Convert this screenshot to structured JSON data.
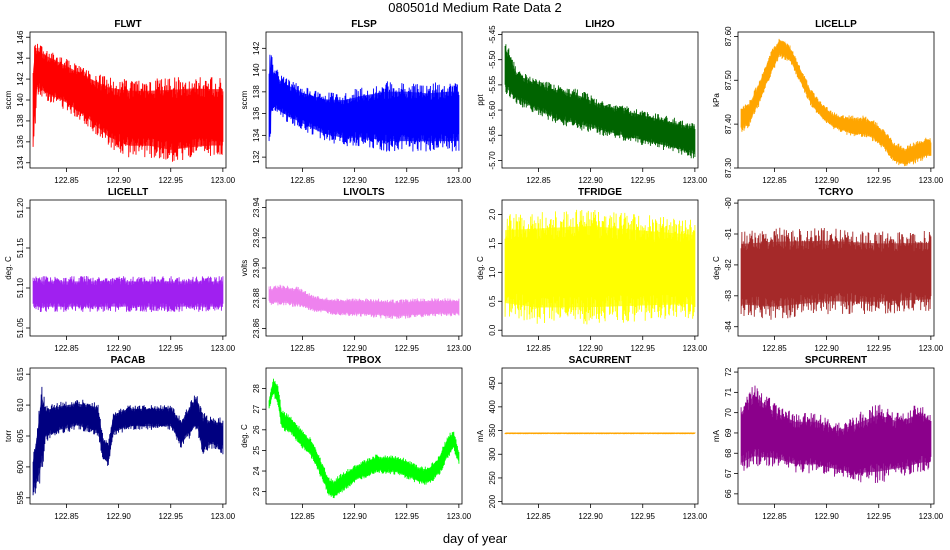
{
  "title": "080501d   Medium Rate Data 2",
  "xlabel": "day of year",
  "chart_data": [
    {
      "type": "line",
      "title": "FLWT",
      "ylabel": "sccm",
      "color": "#ff0000",
      "xlim": [
        122.815,
        123.003
      ],
      "xticks": [
        "122.85",
        "122.90",
        "122.95",
        "123.00"
      ],
      "ylim": [
        133.5,
        146.5
      ],
      "yticks": [
        "134",
        "136",
        "138",
        "140",
        "142",
        "144",
        "146"
      ],
      "series": [
        {
          "x": [
            122.818,
            122.82,
            122.822,
            122.83,
            122.85,
            122.87,
            122.89,
            122.91,
            122.93,
            122.95,
            122.97,
            122.99,
            123.0
          ],
          "upper": [
            144.5,
            145.8,
            145.5,
            145.0,
            144.0,
            143.0,
            142.2,
            142.0,
            142.0,
            142.2,
            142.3,
            142.2,
            142.2
          ],
          "lower": [
            134.0,
            137.5,
            140.5,
            140.0,
            139.0,
            137.5,
            135.5,
            134.5,
            134.5,
            134.0,
            134.3,
            134.5,
            134.5
          ]
        }
      ]
    },
    {
      "type": "line",
      "title": "FLSP",
      "ylabel": "sccm",
      "color": "#0000ff",
      "xlim": [
        122.815,
        123.003
      ],
      "xticks": [
        "122.85",
        "122.90",
        "122.95",
        "123.00"
      ],
      "ylim": [
        131.0,
        143.5
      ],
      "yticks": [
        "132",
        "134",
        "136",
        "138",
        "140",
        "142"
      ],
      "series": [
        {
          "x": [
            122.818,
            122.82,
            122.822,
            122.83,
            122.85,
            122.87,
            122.89,
            122.91,
            122.93,
            122.95,
            122.97,
            122.99,
            123.0
          ],
          "upper": [
            141.0,
            142.5,
            140.5,
            139.5,
            138.5,
            138.0,
            138.0,
            138.5,
            139.0,
            139.0,
            138.8,
            139.0,
            139.0
          ],
          "lower": [
            132.0,
            135.0,
            136.0,
            135.5,
            134.5,
            133.5,
            133.0,
            133.0,
            132.5,
            132.5,
            132.5,
            132.5,
            132.5
          ]
        }
      ]
    },
    {
      "type": "line",
      "title": "LIH2O",
      "ylabel": "ppt",
      "color": "#006400",
      "xlim": [
        122.815,
        123.003
      ],
      "xticks": [
        "122.85",
        "122.90",
        "122.95",
        "123.00"
      ],
      "ylim": [
        -5.715,
        -5.445
      ],
      "yticks": [
        "-5.45",
        "-5.50",
        "-5.55",
        "-5.60",
        "-5.65",
        "-5.70"
      ],
      "series": [
        {
          "x": [
            122.818,
            122.83,
            122.85,
            122.87,
            122.89,
            122.91,
            122.93,
            122.95,
            122.97,
            122.99,
            123.0
          ],
          "upper": [
            -5.46,
            -5.52,
            -5.54,
            -5.55,
            -5.56,
            -5.58,
            -5.59,
            -5.6,
            -5.61,
            -5.62,
            -5.62
          ],
          "lower": [
            -5.57,
            -5.59,
            -5.61,
            -5.63,
            -5.64,
            -5.65,
            -5.66,
            -5.67,
            -5.68,
            -5.69,
            -5.7
          ]
        }
      ]
    },
    {
      "type": "line",
      "title": "LICELLP",
      "ylabel": "kPa",
      "color": "#ffa500",
      "xlim": [
        122.815,
        123.003
      ],
      "xticks": [
        "122.85",
        "122.90",
        "122.95",
        "123.00"
      ],
      "ylim": [
        87.3,
        87.61
      ],
      "yticks": [
        "87.30",
        "87.40",
        "87.50",
        "87.60"
      ],
      "series": [
        {
          "x": [
            122.818,
            122.825,
            122.835,
            122.845,
            122.855,
            122.865,
            122.875,
            122.885,
            122.895,
            122.905,
            122.915,
            122.925,
            122.935,
            122.945,
            122.955,
            122.965,
            122.975,
            122.985,
            122.995,
            123.0
          ],
          "upper": [
            87.44,
            87.45,
            87.5,
            87.56,
            87.6,
            87.58,
            87.53,
            87.48,
            87.45,
            87.43,
            87.42,
            87.42,
            87.42,
            87.41,
            87.39,
            87.36,
            87.35,
            87.36,
            87.37,
            87.37
          ],
          "lower": [
            87.38,
            87.39,
            87.44,
            87.5,
            87.55,
            87.54,
            87.49,
            87.44,
            87.41,
            87.39,
            87.38,
            87.37,
            87.37,
            87.36,
            87.34,
            87.31,
            87.3,
            87.31,
            87.32,
            87.32
          ]
        }
      ]
    },
    {
      "type": "line",
      "title": "LICELLT",
      "ylabel": "deg. C",
      "color": "#a020f0",
      "xlim": [
        122.815,
        123.003
      ],
      "xticks": [
        "122.85",
        "122.90",
        "122.95",
        "123.00"
      ],
      "ylim": [
        51.04,
        51.21
      ],
      "yticks": [
        "51.05",
        "51.10",
        "51.15",
        "51.20"
      ],
      "series": [
        {
          "x": [
            122.818,
            123.0
          ],
          "upper": [
            51.115,
            51.115
          ],
          "lower": [
            51.07,
            51.07
          ]
        }
      ]
    },
    {
      "type": "line",
      "title": "LIVOLTS",
      "ylabel": "volts",
      "color": "#ee82ee",
      "xlim": [
        122.815,
        123.003
      ],
      "xticks": [
        "122.85",
        "122.90",
        "122.95",
        "123.00"
      ],
      "ylim": [
        23.855,
        23.945
      ],
      "yticks": [
        "23.86",
        "23.88",
        "23.90",
        "23.92",
        "23.94"
      ],
      "series": [
        {
          "x": [
            122.818,
            122.83,
            122.845,
            122.86,
            122.88,
            122.9,
            122.92,
            122.94,
            122.96,
            122.98,
            123.0
          ],
          "upper": [
            23.888,
            23.889,
            23.888,
            23.882,
            23.88,
            23.88,
            23.88,
            23.879,
            23.88,
            23.88,
            23.88
          ],
          "lower": [
            23.875,
            23.875,
            23.874,
            23.871,
            23.869,
            23.868,
            23.867,
            23.866,
            23.867,
            23.868,
            23.868
          ]
        }
      ]
    },
    {
      "type": "line",
      "title": "TFRIDGE",
      "ylabel": "deg. C",
      "color": "#ffff00",
      "xlim": [
        122.815,
        123.003
      ],
      "xticks": [
        "122.85",
        "122.90",
        "122.95",
        "123.00"
      ],
      "ylim": [
        -0.1,
        2.25
      ],
      "yticks": [
        "0.0",
        "0.5",
        "1.0",
        "1.5",
        "2.0"
      ],
      "series": [
        {
          "x": [
            122.818,
            122.85,
            122.9,
            122.95,
            123.0
          ],
          "upper": [
            2.0,
            2.05,
            2.1,
            2.0,
            1.9
          ],
          "lower": [
            0.2,
            0.1,
            0.1,
            0.15,
            0.2
          ]
        }
      ]
    },
    {
      "type": "line",
      "title": "TCRYO",
      "ylabel": "deg. C",
      "color": "#a52a2a",
      "xlim": [
        122.815,
        123.003
      ],
      "xticks": [
        "122.85",
        "122.90",
        "122.95",
        "123.00"
      ],
      "ylim": [
        -84.3,
        -79.9
      ],
      "yticks": [
        "-80",
        "-81",
        "-82",
        "-83",
        "-84"
      ],
      "series": [
        {
          "x": [
            122.818,
            122.85,
            122.9,
            122.95,
            123.0
          ],
          "upper": [
            -80.9,
            -80.8,
            -80.8,
            -80.9,
            -80.9
          ],
          "lower": [
            -83.7,
            -83.8,
            -83.6,
            -83.6,
            -83.5
          ]
        }
      ]
    },
    {
      "type": "line",
      "title": "PACAB",
      "ylabel": "torr",
      "color": "#000080",
      "xlim": [
        122.815,
        123.003
      ],
      "xticks": [
        "122.85",
        "122.90",
        "122.95",
        "123.00"
      ],
      "ylim": [
        594.0,
        616.0
      ],
      "yticks": [
        "595",
        "600",
        "605",
        "610",
        "615"
      ],
      "series": [
        {
          "x": [
            122.818,
            122.822,
            122.826,
            122.83,
            122.84,
            122.86,
            122.88,
            122.885,
            122.89,
            122.895,
            122.91,
            122.93,
            122.95,
            122.96,
            122.97,
            122.975,
            122.98,
            122.99,
            123.0
          ],
          "upper": [
            602,
            607,
            614,
            610,
            610.5,
            611,
            610.5,
            605,
            604,
            609,
            610,
            610,
            610,
            608,
            611,
            612,
            609,
            608,
            608
          ],
          "lower": [
            595,
            596,
            598,
            604,
            605,
            606,
            605,
            601,
            600,
            605,
            606,
            606,
            606,
            603,
            605,
            606,
            602,
            603,
            602
          ]
        }
      ]
    },
    {
      "type": "line",
      "title": "TPBOX",
      "ylabel": "deg. C",
      "color": "#00ff00",
      "xlim": [
        122.815,
        123.003
      ],
      "xticks": [
        "122.85",
        "122.90",
        "122.95",
        "123.00"
      ],
      "ylim": [
        22.4,
        29.0
      ],
      "yticks": [
        "23",
        "24",
        "25",
        "26",
        "27",
        "28"
      ],
      "series": [
        {
          "x": [
            122.818,
            122.822,
            122.826,
            122.83,
            122.84,
            122.85,
            122.86,
            122.87,
            122.875,
            122.88,
            122.89,
            122.9,
            122.92,
            122.94,
            122.95,
            122.96,
            122.97,
            122.98,
            122.99,
            122.995,
            123.0
          ],
          "upper": [
            27.5,
            28.5,
            28.3,
            27.0,
            26.6,
            26.0,
            25.5,
            24.3,
            23.7,
            23.6,
            24.0,
            24.3,
            24.8,
            24.8,
            24.6,
            24.3,
            24.2,
            24.7,
            25.8,
            26.0,
            25.0
          ],
          "lower": [
            27.0,
            27.7,
            27.2,
            26.0,
            25.7,
            25.1,
            24.5,
            23.4,
            22.8,
            22.6,
            23.0,
            23.4,
            23.9,
            23.8,
            23.6,
            23.4,
            23.3,
            23.7,
            24.6,
            25.0,
            24.3
          ]
        }
      ]
    },
    {
      "type": "line",
      "title": "SACURRENT",
      "ylabel": "mA",
      "color": "#ffa500",
      "xlim": [
        122.815,
        123.003
      ],
      "xticks": [
        "122.85",
        "122.90",
        "122.95",
        "123.00"
      ],
      "ylim": [
        195,
        482
      ],
      "yticks": [
        "200",
        "250",
        "300",
        "350",
        "400",
        "450"
      ],
      "series": [
        {
          "x": [
            122.818,
            123.0
          ],
          "upper": [
            344.5,
            344.5
          ],
          "lower": [
            344.0,
            344.0
          ]
        }
      ]
    },
    {
      "type": "line",
      "title": "SPCURRENT",
      "ylabel": "mA",
      "color": "#8b008b",
      "xlim": [
        122.815,
        123.003
      ],
      "xticks": [
        "122.85",
        "122.90",
        "122.95",
        "123.00"
      ],
      "ylim": [
        65.5,
        72.2
      ],
      "yticks": [
        "66",
        "67",
        "68",
        "69",
        "70",
        "71",
        "72"
      ],
      "series": [
        {
          "x": [
            122.818,
            122.83,
            122.85,
            122.87,
            122.89,
            122.91,
            122.93,
            122.95,
            122.97,
            122.99,
            123.0
          ],
          "upper": [
            70.5,
            71.5,
            70.5,
            70.0,
            70.0,
            69.5,
            70.0,
            70.5,
            70.0,
            70.5,
            70.0
          ],
          "lower": [
            67.0,
            67.2,
            67.3,
            67.0,
            67.0,
            66.8,
            66.5,
            66.5,
            66.8,
            67.0,
            67.2
          ]
        }
      ]
    }
  ]
}
